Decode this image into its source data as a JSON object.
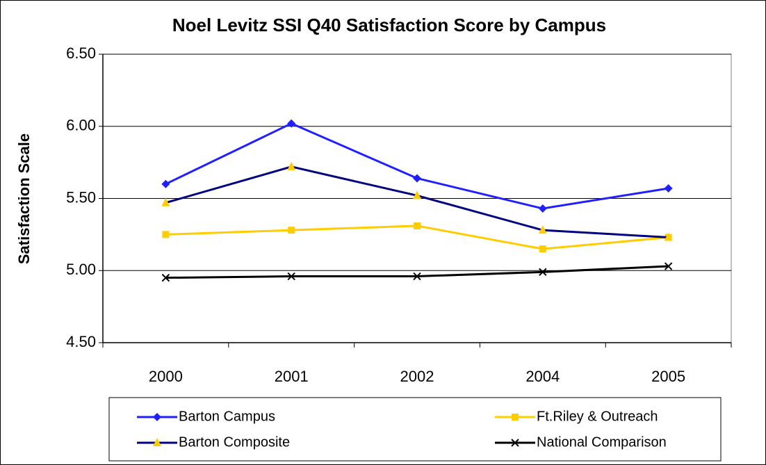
{
  "chart_data": {
    "type": "line",
    "title": "Noel Levitz SSI Q40 Satisfaction Score by Campus",
    "y_label": "Satisfaction Scale",
    "categories": [
      "2000",
      "2001",
      "2002",
      "2004",
      "2005"
    ],
    "series": [
      {
        "name": "Barton Campus",
        "color": "#1f1fff",
        "marker": "diamond",
        "values": [
          5.6,
          6.02,
          5.64,
          5.43,
          5.57
        ]
      },
      {
        "name": "Ft.Riley & Outreach",
        "color": "#ffcc00",
        "marker": "square",
        "values": [
          5.25,
          5.28,
          5.31,
          5.15,
          5.23
        ]
      },
      {
        "name": "Barton Composite",
        "color": "#000080",
        "marker": "triangle",
        "marker_color": "#ffcc00",
        "values": [
          5.47,
          5.72,
          5.52,
          5.28,
          5.23
        ]
      },
      {
        "name": "National Comparison",
        "color": "#000000",
        "marker": "cross",
        "values": [
          4.95,
          4.96,
          4.96,
          4.99,
          5.03
        ]
      }
    ],
    "ylim": [
      4.5,
      6.5
    ],
    "yticks": [
      {
        "value": 4.5,
        "label": "4.50"
      },
      {
        "value": 5.0,
        "label": "5.00"
      },
      {
        "value": 5.5,
        "label": "5.50"
      },
      {
        "value": 6.0,
        "label": "6.00"
      },
      {
        "value": 6.5,
        "label": "6.50"
      }
    ],
    "grid": true,
    "legend": "bottom"
  }
}
